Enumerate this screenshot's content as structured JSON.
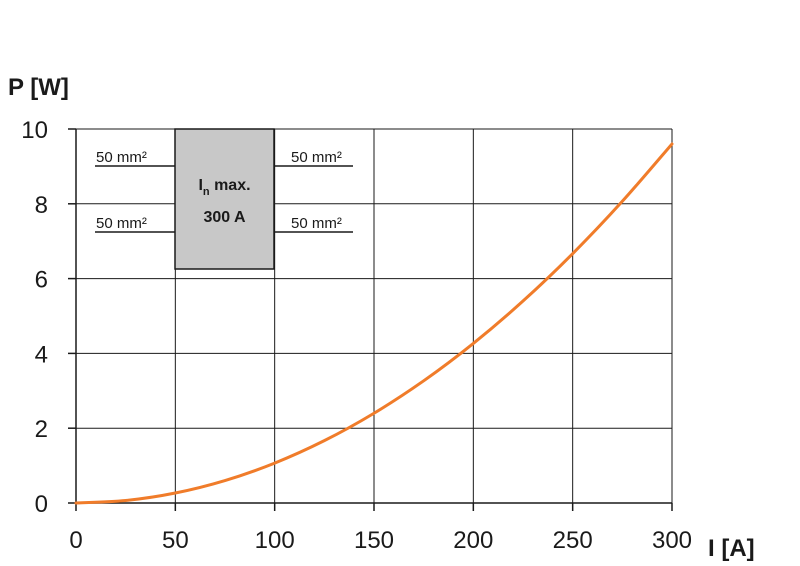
{
  "chart_data": {
    "type": "line",
    "ylabel": "P [W]",
    "xlabel": "I [A]",
    "xlim": [
      0,
      300
    ],
    "ylim": [
      0,
      10
    ],
    "x_ticks": [
      "0",
      "50",
      "100",
      "150",
      "200",
      "250",
      "300"
    ],
    "y_ticks": [
      "0",
      "2",
      "4",
      "6",
      "8",
      "10"
    ],
    "grid": true,
    "series": [
      {
        "color": "#f07c2a",
        "x": [
          0,
          25,
          50,
          75,
          100,
          125,
          150,
          175,
          200,
          225,
          250,
          275,
          300
        ],
        "y": [
          0,
          0.067,
          0.267,
          0.6,
          1.067,
          1.667,
          2.4,
          3.267,
          4.267,
          5.4,
          6.667,
          8.067,
          9.6
        ]
      }
    ],
    "inset": {
      "box_title_main": "I",
      "box_title_sub": "n",
      "box_title_rest": " max.",
      "box_rating": "300 A",
      "box_color": "#c8c8c8",
      "left_labels": [
        "50 mm²",
        "50 mm²"
      ],
      "right_labels": [
        "50 mm²",
        "50 mm²"
      ]
    }
  }
}
